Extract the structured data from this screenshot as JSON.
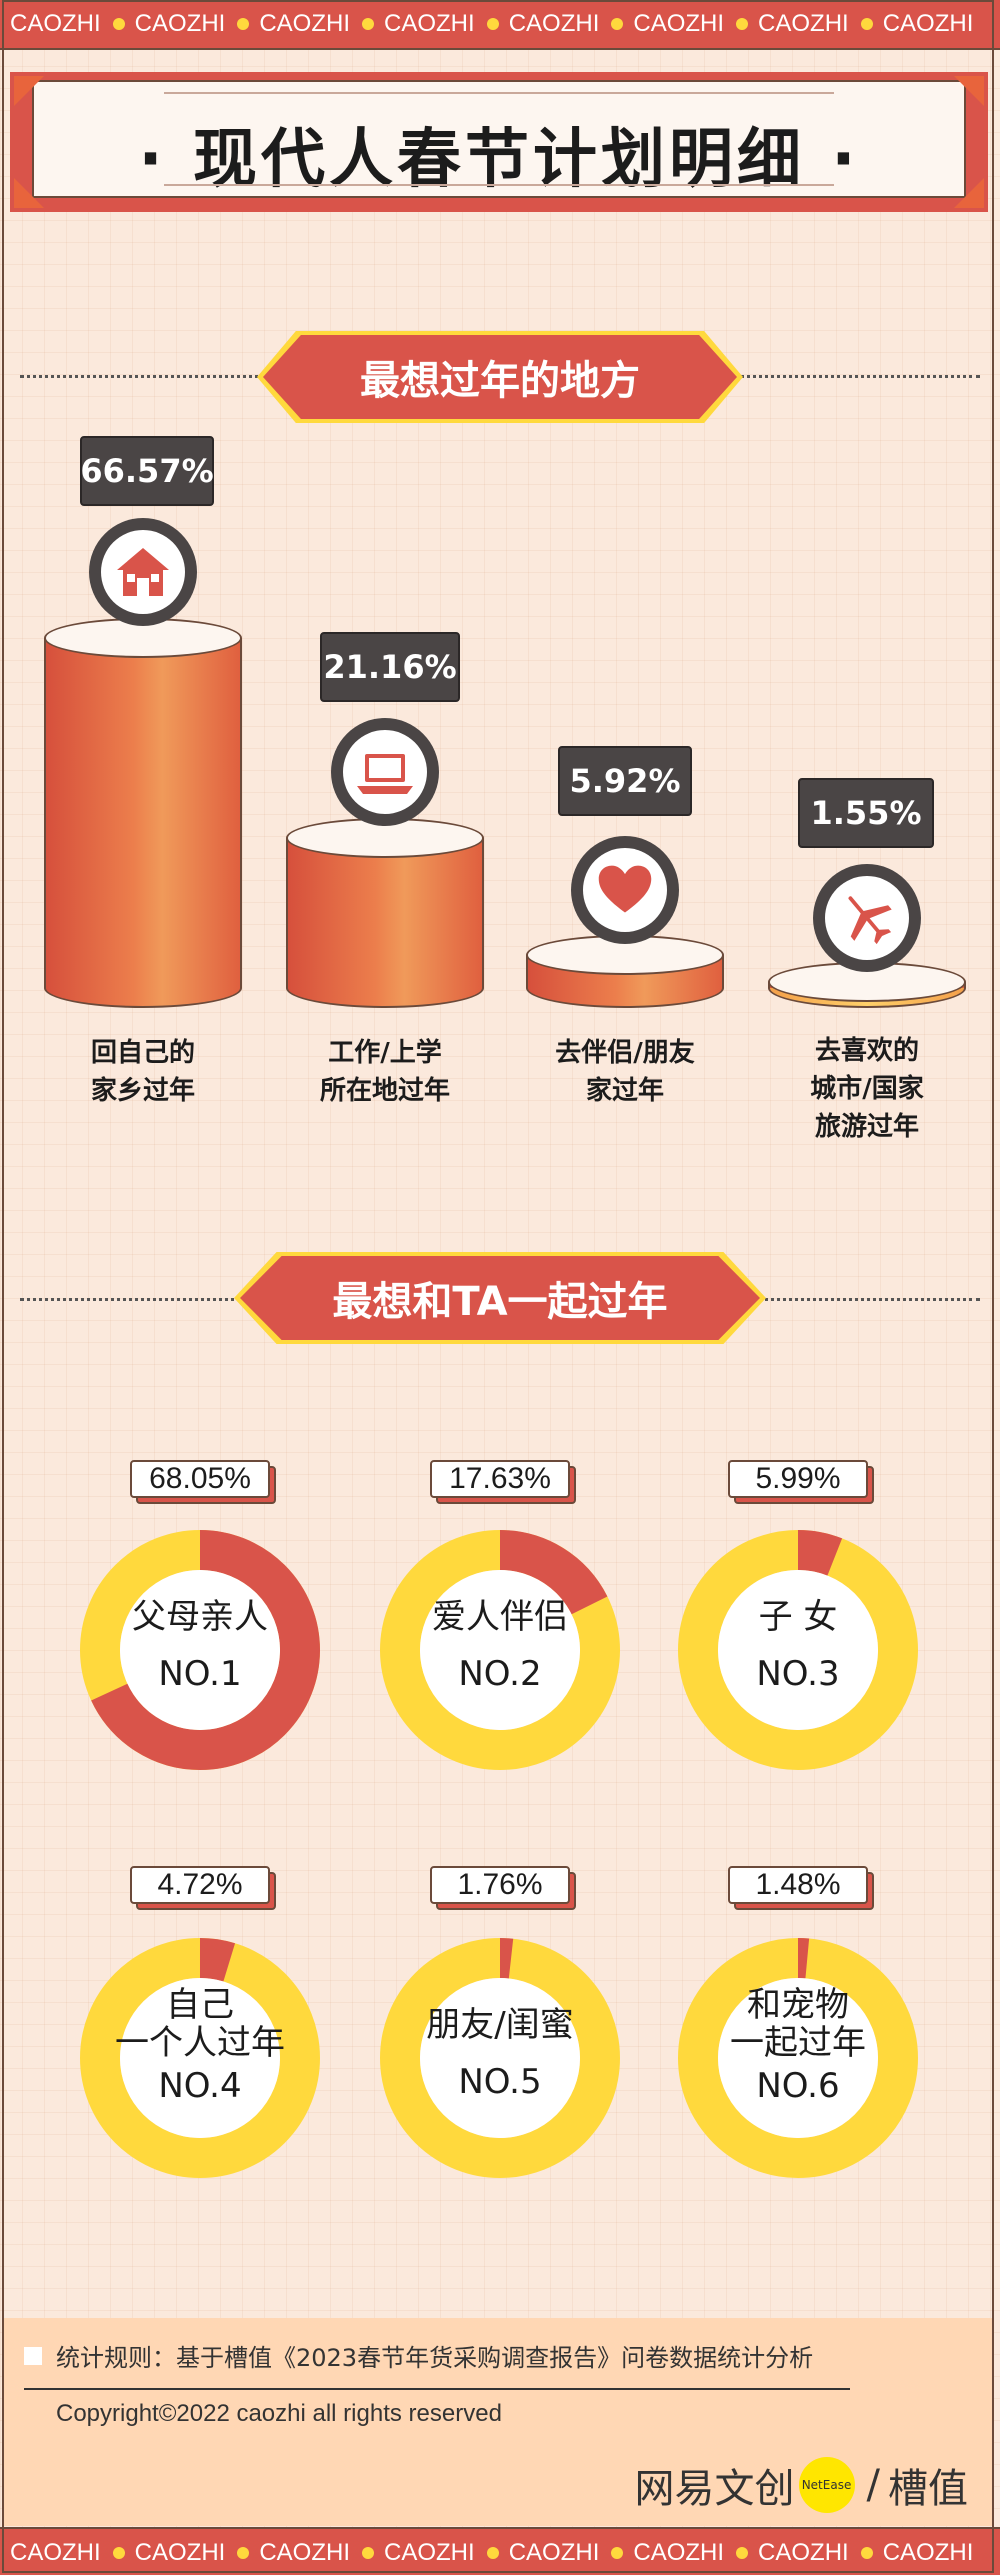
{
  "ticker": {
    "text": "CAOZHI",
    "repeat": 8
  },
  "title": "· 现代人春节计划明细 ·",
  "section1": {
    "heading": "最想过年的地方",
    "items": [
      {
        "pct": "66.57%",
        "value": 66.57,
        "label_line1": "回自己的",
        "label_line2": "家乡过年",
        "label_line3": "",
        "icon": "house-icon"
      },
      {
        "pct": "21.16%",
        "value": 21.16,
        "label_line1": "工作/上学",
        "label_line2": "所在地过年",
        "label_line3": "",
        "icon": "laptop-icon"
      },
      {
        "pct": "5.92%",
        "value": 5.92,
        "label_line1": "去伴侣/朋友",
        "label_line2": "家过年",
        "label_line3": "",
        "icon": "heart-icon"
      },
      {
        "pct": "1.55%",
        "value": 1.55,
        "label_line1": "去喜欢的",
        "label_line2": "城市/国家",
        "label_line3": "旅游过年",
        "icon": "airplane-icon"
      }
    ]
  },
  "section2": {
    "heading": "最想和TA一起过年",
    "items": [
      {
        "pct": "68.05%",
        "value": 68.05,
        "name_line1": "父母亲人",
        "name_line2": "",
        "rank": "NO.1"
      },
      {
        "pct": "17.63%",
        "value": 17.63,
        "name_line1": "爱人伴侣",
        "name_line2": "",
        "rank": "NO.2"
      },
      {
        "pct": "5.99%",
        "value": 5.99,
        "name_line1": "子 女",
        "name_line2": "",
        "rank": "NO.3"
      },
      {
        "pct": "4.72%",
        "value": 4.72,
        "name_line1": "自己",
        "name_line2": "一个人过年",
        "rank": "NO.4"
      },
      {
        "pct": "1.76%",
        "value": 1.76,
        "name_line1": "朋友/闺蜜",
        "name_line2": "",
        "rank": "NO.5"
      },
      {
        "pct": "1.48%",
        "value": 1.48,
        "name_line1": "和宠物",
        "name_line2": "一起过年",
        "rank": "NO.6"
      }
    ]
  },
  "footer": {
    "rule": "统计规则：基于槽值《2023春节年货采购调查报告》问卷数据统计分析",
    "copyright": "Copyright©2022 caozhi all rights reserved",
    "logo_left": "网易文创",
    "logo_dot": "NetEase",
    "logo_sep": "/",
    "logo_right": "槽值"
  },
  "colors": {
    "red": "#d9544a",
    "yellow": "#ffd93d",
    "dark": "#4a4545",
    "bg": "#fbe9dc"
  }
}
